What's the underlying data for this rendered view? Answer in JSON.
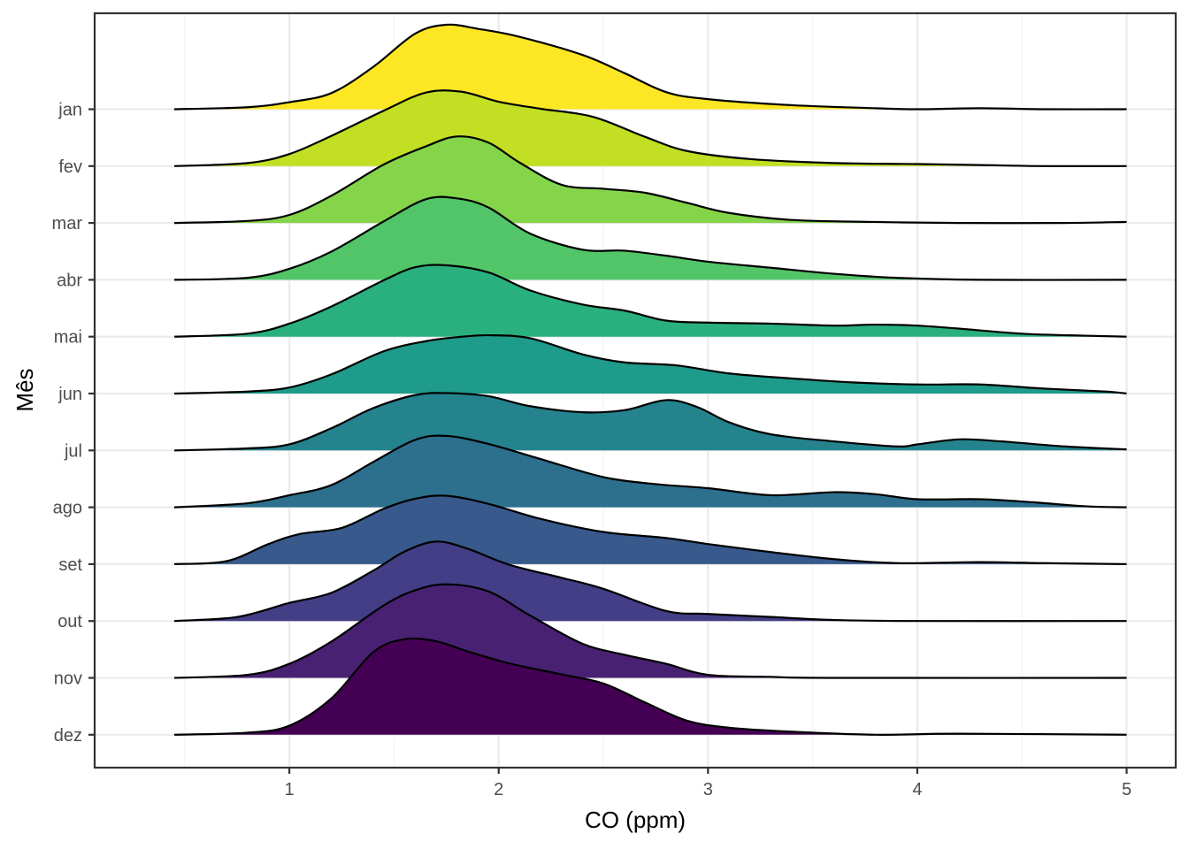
{
  "chart_data": {
    "type": "ridgeline",
    "xlabel": "CO (ppm)",
    "ylabel": "Mês",
    "xlim": [
      0.1,
      5.2
    ],
    "x_ticks": [
      1,
      2,
      3,
      4,
      5
    ],
    "x_tick_labels": [
      "1",
      "2",
      "3",
      "4",
      "5"
    ],
    "x_minor_ticks": [
      0.5,
      1.5,
      2.5,
      3.5,
      4.5
    ],
    "categories": [
      "jan",
      "fev",
      "mar",
      "abr",
      "mai",
      "jun",
      "jul",
      "ago",
      "set",
      "out",
      "nov",
      "dez"
    ],
    "grid": true,
    "ridge_peak_spacings": 1.68,
    "series": [
      {
        "name": "jan",
        "color": "#FDE725",
        "points": [
          [
            0.45,
            0.0
          ],
          [
            0.8,
            0.02
          ],
          [
            1.0,
            0.07
          ],
          [
            1.2,
            0.16
          ],
          [
            1.4,
            0.42
          ],
          [
            1.6,
            0.75
          ],
          [
            1.75,
            0.84
          ],
          [
            1.9,
            0.8
          ],
          [
            2.1,
            0.72
          ],
          [
            2.4,
            0.54
          ],
          [
            2.6,
            0.36
          ],
          [
            2.8,
            0.17
          ],
          [
            3.0,
            0.1
          ],
          [
            3.4,
            0.04
          ],
          [
            3.8,
            0.01
          ],
          [
            4.0,
            0.0
          ],
          [
            4.3,
            0.01
          ],
          [
            4.6,
            0.0
          ],
          [
            5.0,
            0.0
          ]
        ]
      },
      {
        "name": "fev",
        "color": "#C2DF23",
        "points": [
          [
            0.45,
            0.0
          ],
          [
            0.8,
            0.03
          ],
          [
            1.0,
            0.12
          ],
          [
            1.2,
            0.3
          ],
          [
            1.45,
            0.55
          ],
          [
            1.65,
            0.73
          ],
          [
            1.82,
            0.74
          ],
          [
            2.0,
            0.64
          ],
          [
            2.2,
            0.57
          ],
          [
            2.45,
            0.49
          ],
          [
            2.7,
            0.29
          ],
          [
            2.9,
            0.15
          ],
          [
            3.2,
            0.07
          ],
          [
            3.6,
            0.03
          ],
          [
            4.0,
            0.02
          ],
          [
            4.3,
            0.01
          ],
          [
            4.6,
            0.0
          ],
          [
            5.0,
            0.0
          ]
        ]
      },
      {
        "name": "mar",
        "color": "#85D54A",
        "points": [
          [
            0.45,
            0.0
          ],
          [
            0.8,
            0.02
          ],
          [
            1.0,
            0.08
          ],
          [
            1.2,
            0.27
          ],
          [
            1.45,
            0.58
          ],
          [
            1.65,
            0.76
          ],
          [
            1.8,
            0.86
          ],
          [
            1.95,
            0.8
          ],
          [
            2.1,
            0.6
          ],
          [
            2.3,
            0.38
          ],
          [
            2.5,
            0.34
          ],
          [
            2.7,
            0.3
          ],
          [
            2.9,
            0.2
          ],
          [
            3.1,
            0.1
          ],
          [
            3.4,
            0.03
          ],
          [
            3.8,
            0.01
          ],
          [
            4.2,
            0.0
          ],
          [
            4.7,
            0.0
          ],
          [
            5.0,
            0.01
          ]
        ]
      },
      {
        "name": "abr",
        "color": "#52C569",
        "points": [
          [
            0.45,
            0.0
          ],
          [
            0.8,
            0.02
          ],
          [
            1.0,
            0.11
          ],
          [
            1.2,
            0.28
          ],
          [
            1.45,
            0.58
          ],
          [
            1.65,
            0.8
          ],
          [
            1.8,
            0.81
          ],
          [
            1.95,
            0.72
          ],
          [
            2.15,
            0.46
          ],
          [
            2.4,
            0.3
          ],
          [
            2.6,
            0.29
          ],
          [
            2.8,
            0.24
          ],
          [
            3.0,
            0.18
          ],
          [
            3.3,
            0.12
          ],
          [
            3.6,
            0.06
          ],
          [
            3.9,
            0.02
          ],
          [
            4.3,
            0.0
          ],
          [
            5.0,
            0.0
          ]
        ]
      },
      {
        "name": "mai",
        "color": "#2AB07F",
        "points": [
          [
            0.45,
            0.0
          ],
          [
            0.8,
            0.03
          ],
          [
            1.0,
            0.13
          ],
          [
            1.2,
            0.3
          ],
          [
            1.45,
            0.56
          ],
          [
            1.6,
            0.69
          ],
          [
            1.75,
            0.71
          ],
          [
            1.95,
            0.64
          ],
          [
            2.15,
            0.46
          ],
          [
            2.4,
            0.32
          ],
          [
            2.6,
            0.26
          ],
          [
            2.8,
            0.16
          ],
          [
            3.0,
            0.14
          ],
          [
            3.3,
            0.13
          ],
          [
            3.6,
            0.11
          ],
          [
            3.8,
            0.12
          ],
          [
            4.0,
            0.11
          ],
          [
            4.2,
            0.08
          ],
          [
            4.5,
            0.03
          ],
          [
            4.8,
            0.01
          ],
          [
            5.0,
            0.0
          ]
        ]
      },
      {
        "name": "jun",
        "color": "#1E9B8A",
        "points": [
          [
            0.45,
            0.0
          ],
          [
            0.8,
            0.02
          ],
          [
            1.0,
            0.06
          ],
          [
            1.2,
            0.19
          ],
          [
            1.45,
            0.42
          ],
          [
            1.65,
            0.52
          ],
          [
            1.8,
            0.56
          ],
          [
            1.95,
            0.58
          ],
          [
            2.15,
            0.55
          ],
          [
            2.4,
            0.39
          ],
          [
            2.6,
            0.31
          ],
          [
            2.85,
            0.28
          ],
          [
            3.1,
            0.2
          ],
          [
            3.4,
            0.15
          ],
          [
            3.7,
            0.11
          ],
          [
            4.0,
            0.09
          ],
          [
            4.3,
            0.09
          ],
          [
            4.6,
            0.05
          ],
          [
            4.9,
            0.02
          ],
          [
            5.0,
            0.0
          ]
        ]
      },
      {
        "name": "jul",
        "color": "#25838E",
        "points": [
          [
            0.45,
            0.0
          ],
          [
            0.8,
            0.02
          ],
          [
            1.0,
            0.06
          ],
          [
            1.2,
            0.22
          ],
          [
            1.4,
            0.42
          ],
          [
            1.6,
            0.55
          ],
          [
            1.75,
            0.57
          ],
          [
            1.95,
            0.54
          ],
          [
            2.15,
            0.44
          ],
          [
            2.4,
            0.38
          ],
          [
            2.6,
            0.4
          ],
          [
            2.8,
            0.5
          ],
          [
            2.95,
            0.43
          ],
          [
            3.1,
            0.28
          ],
          [
            3.3,
            0.16
          ],
          [
            3.6,
            0.09
          ],
          [
            3.9,
            0.04
          ],
          [
            4.0,
            0.06
          ],
          [
            4.2,
            0.11
          ],
          [
            4.4,
            0.09
          ],
          [
            4.7,
            0.04
          ],
          [
            5.0,
            0.01
          ]
        ]
      },
      {
        "name": "ago",
        "color": "#2D708E",
        "points": [
          [
            0.45,
            0.0
          ],
          [
            0.8,
            0.04
          ],
          [
            1.0,
            0.12
          ],
          [
            1.2,
            0.22
          ],
          [
            1.4,
            0.45
          ],
          [
            1.6,
            0.67
          ],
          [
            1.75,
            0.71
          ],
          [
            1.95,
            0.63
          ],
          [
            2.2,
            0.48
          ],
          [
            2.5,
            0.3
          ],
          [
            2.75,
            0.23
          ],
          [
            3.0,
            0.19
          ],
          [
            3.3,
            0.12
          ],
          [
            3.6,
            0.15
          ],
          [
            3.8,
            0.13
          ],
          [
            4.0,
            0.08
          ],
          [
            4.3,
            0.08
          ],
          [
            4.55,
            0.05
          ],
          [
            4.8,
            0.01
          ],
          [
            5.0,
            0.0
          ]
        ]
      },
      {
        "name": "set",
        "color": "#38598C",
        "points": [
          [
            0.45,
            0.0
          ],
          [
            0.7,
            0.03
          ],
          [
            0.9,
            0.2
          ],
          [
            1.05,
            0.3
          ],
          [
            1.25,
            0.36
          ],
          [
            1.45,
            0.55
          ],
          [
            1.6,
            0.65
          ],
          [
            1.75,
            0.68
          ],
          [
            1.95,
            0.6
          ],
          [
            2.2,
            0.45
          ],
          [
            2.5,
            0.32
          ],
          [
            2.8,
            0.26
          ],
          [
            3.0,
            0.2
          ],
          [
            3.3,
            0.12
          ],
          [
            3.6,
            0.05
          ],
          [
            3.9,
            0.01
          ],
          [
            4.3,
            0.02
          ],
          [
            4.6,
            0.01
          ],
          [
            5.0,
            0.0
          ]
        ]
      },
      {
        "name": "out",
        "color": "#433E85",
        "points": [
          [
            0.45,
            0.0
          ],
          [
            0.75,
            0.04
          ],
          [
            1.0,
            0.18
          ],
          [
            1.2,
            0.28
          ],
          [
            1.4,
            0.5
          ],
          [
            1.55,
            0.69
          ],
          [
            1.7,
            0.79
          ],
          [
            1.85,
            0.72
          ],
          [
            2.05,
            0.56
          ],
          [
            2.3,
            0.43
          ],
          [
            2.5,
            0.32
          ],
          [
            2.8,
            0.1
          ],
          [
            3.0,
            0.07
          ],
          [
            3.3,
            0.04
          ],
          [
            3.6,
            0.01
          ],
          [
            4.0,
            0.0
          ],
          [
            5.0,
            0.0
          ]
        ]
      },
      {
        "name": "nov",
        "color": "#482173",
        "points": [
          [
            0.45,
            0.0
          ],
          [
            0.8,
            0.03
          ],
          [
            1.0,
            0.14
          ],
          [
            1.2,
            0.36
          ],
          [
            1.45,
            0.72
          ],
          [
            1.6,
            0.87
          ],
          [
            1.75,
            0.93
          ],
          [
            1.95,
            0.86
          ],
          [
            2.15,
            0.62
          ],
          [
            2.4,
            0.34
          ],
          [
            2.6,
            0.23
          ],
          [
            2.8,
            0.14
          ],
          [
            3.0,
            0.03
          ],
          [
            3.3,
            0.01
          ],
          [
            3.6,
            0.0
          ],
          [
            5.0,
            0.0
          ]
        ]
      },
      {
        "name": "dez",
        "color": "#440154",
        "points": [
          [
            0.45,
            0.0
          ],
          [
            0.8,
            0.02
          ],
          [
            1.0,
            0.09
          ],
          [
            1.2,
            0.36
          ],
          [
            1.4,
            0.82
          ],
          [
            1.55,
            0.95
          ],
          [
            1.7,
            0.93
          ],
          [
            1.85,
            0.83
          ],
          [
            2.05,
            0.71
          ],
          [
            2.3,
            0.6
          ],
          [
            2.5,
            0.51
          ],
          [
            2.7,
            0.32
          ],
          [
            2.9,
            0.14
          ],
          [
            3.1,
            0.07
          ],
          [
            3.4,
            0.03
          ],
          [
            3.8,
            0.0
          ],
          [
            4.2,
            0.01
          ],
          [
            5.0,
            0.0
          ]
        ]
      }
    ]
  }
}
